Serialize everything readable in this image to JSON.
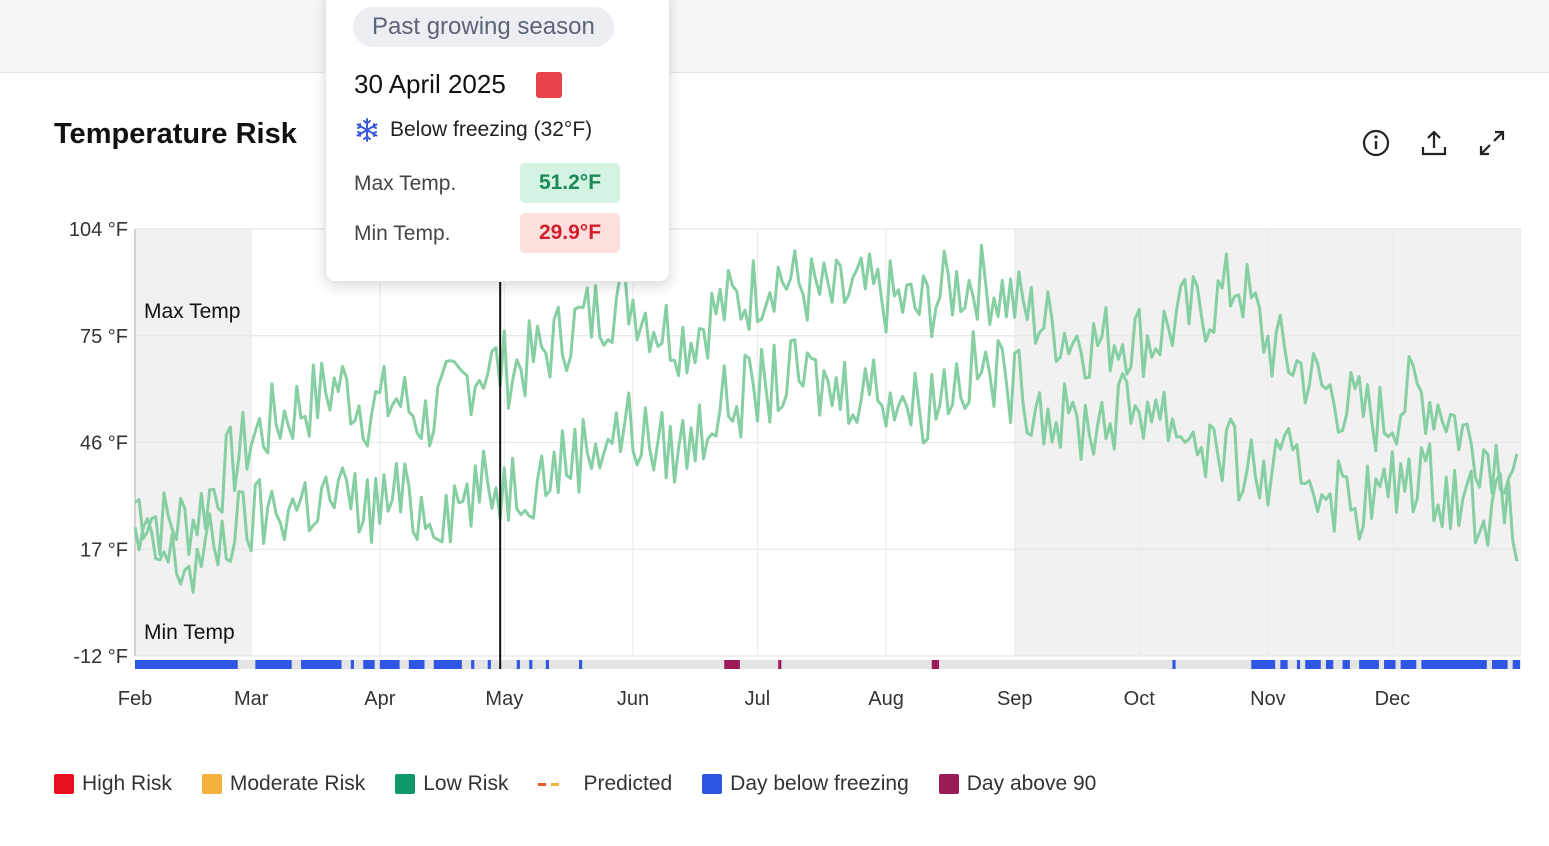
{
  "tooltip": {
    "badge": "Past growing season",
    "date": "30 April 2025",
    "freeze_label": "Below freezing (32°F)",
    "max_label": "Max Temp.",
    "max_value": "51.2°F",
    "min_label": "Min Temp.",
    "min_value": "29.9°F",
    "icon": "snowflake-icon",
    "risk_color": "#e8414a"
  },
  "card": {
    "title": "Temperature Risk",
    "toolbar": [
      {
        "icon": "info-icon"
      },
      {
        "icon": "export-icon"
      },
      {
        "icon": "expand-icon"
      }
    ]
  },
  "legend": [
    {
      "label": "High Risk",
      "color": "#e8101e",
      "kind": "swatch"
    },
    {
      "label": "Moderate Risk",
      "color": "#f5b23d",
      "kind": "swatch"
    },
    {
      "label": "Low Risk",
      "color": "#0e9a68",
      "kind": "swatch"
    },
    {
      "label": "Predicted",
      "colors": [
        "#e85a2a",
        "#f0b43a"
      ],
      "kind": "dash"
    },
    {
      "label": "Day below freezing",
      "color": "#2f55e4",
      "kind": "swatch"
    },
    {
      "label": "Day above 90",
      "color": "#9c1a56",
      "kind": "swatch"
    }
  ],
  "chart_data": {
    "type": "line",
    "title": "",
    "xlabel": "",
    "ylabel": "",
    "ylim": [
      -12,
      104
    ],
    "y_ticks": [
      "104 °F",
      "75 °F",
      "46 °F",
      "17 °F",
      "-12 °F"
    ],
    "y_tick_values": [
      104,
      75,
      46,
      17,
      -12
    ],
    "x_ticks": [
      "Feb",
      "Mar",
      "Apr",
      "May",
      "Jun",
      "Jul",
      "Aug",
      "Sep",
      "Oct",
      "Nov",
      "Dec"
    ],
    "xlim": [
      "2025-02-01",
      "2026-01-01"
    ],
    "x_tick_dates": [
      "2025-02-01",
      "2025-03-01",
      "2025-04-01",
      "2025-05-01",
      "2025-06-01",
      "2025-07-01",
      "2025-08-01",
      "2025-09-01",
      "2025-10-01",
      "2025-11-01",
      "2025-12-01"
    ],
    "series_labels": {
      "max": "Max Temp",
      "min": "Min Temp"
    },
    "shaded_ranges": [
      [
        "2025-02-01",
        "2025-03-01"
      ],
      [
        "2025-09-01",
        "2026-01-01"
      ]
    ],
    "selected_date": "2025-04-30",
    "line_color": "#86cfa3",
    "grid": true,
    "series": [
      {
        "key": "max",
        "weekly_start": "2025-02-01",
        "weekly_values": [
          30,
          24,
          25,
          37,
          47,
          53,
          57,
          62,
          55,
          58,
          52,
          60,
          67,
          66,
          70,
          77,
          82,
          86,
          78,
          74,
          82,
          85,
          92,
          88,
          85,
          87,
          85,
          82,
          88,
          90,
          86,
          80,
          76,
          73,
          75,
          74,
          80,
          83,
          90,
          73,
          67,
          60,
          55,
          52,
          60,
          56,
          46,
          42,
          37,
          35,
          42,
          45,
          45
        ]
      },
      {
        "key": "min",
        "weekly_start": "2025-02-01",
        "weekly_values": [
          18,
          14,
          12,
          20,
          25,
          28,
          30,
          31,
          28,
          31,
          27,
          30,
          33,
          35,
          37,
          42,
          47,
          50,
          44,
          45,
          55,
          59,
          62,
          64,
          60,
          62,
          60,
          55,
          62,
          66,
          63,
          58,
          51,
          51,
          55,
          57,
          50,
          45,
          40,
          36,
          40,
          34,
          30,
          32,
          38,
          34,
          30,
          27,
          22,
          25,
          30,
          35,
          33
        ]
      }
    ],
    "freezing_days": [
      "2025-02-01/2025-02-25",
      "2025-03-02/2025-03-10",
      "2025-03-13/2025-03-22",
      "2025-03-25",
      "2025-03-28/2025-03-30",
      "2025-04-01/2025-04-05",
      "2025-04-08/2025-04-11",
      "2025-04-14/2025-04-20",
      "2025-04-23",
      "2025-04-27",
      "2025-05-04",
      "2025-05-07",
      "2025-05-11",
      "2025-05-19",
      "2025-10-09",
      "2025-10-28/2025-11-02",
      "2025-11-04/2025-11-05",
      "2025-11-08",
      "2025-11-10/2025-11-13",
      "2025-11-15/2025-11-16",
      "2025-11-19/2025-11-20",
      "2025-11-23/2025-11-27",
      "2025-11-29/2025-12-01",
      "2025-12-03/2025-12-06",
      "2025-12-08/2025-12-23",
      "2025-12-25/2025-12-28",
      "2025-12-30/2025-12-31"
    ],
    "hot_days": [
      "2025-06-23/2025-06-26",
      "2025-07-06",
      "2025-08-12/2025-08-13"
    ]
  }
}
